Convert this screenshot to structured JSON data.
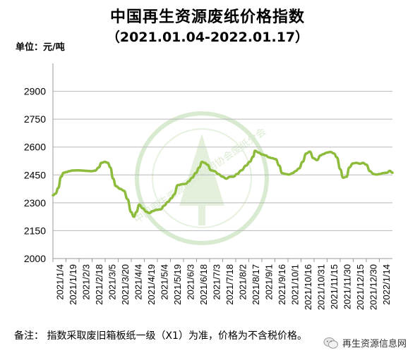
{
  "header": {
    "title": "中国再生资源废纸价格指数",
    "subtitle": "（2021.01.04-2022.01.17）",
    "unit_label": "单位：元/吨"
  },
  "footer": {
    "note": "备注：  指数采取废旧箱板纸一级（X1）为准，价格为不含税价格。",
    "brand_text": "再生资源信息网",
    "brand_icon": "wechat-icon",
    "watermark_text": "中国再生资源回收利用协会废纸分会"
  },
  "colors": {
    "line": "#8dbb3b",
    "axis": "#9a9a9a",
    "watermark": "#d8ead0"
  },
  "chart_data": {
    "type": "line",
    "title": "中国再生资源废纸价格指数",
    "subtitle": "（2021.01.04-2022.01.17）",
    "ylabel": "单位：元/吨",
    "ylim": [
      2000,
      3050
    ],
    "yticks": [
      2000,
      2150,
      2300,
      2450,
      2600,
      2750,
      2900
    ],
    "xticks": [
      "2021/1/4",
      "2021/1/19",
      "2021/2/3",
      "2021/2/18",
      "2021/3/5",
      "2021/3/20",
      "2021/4/4",
      "2021/4/19",
      "2021/5/4",
      "2021/5/19",
      "2021/6/3",
      "2021/6/18",
      "2021/7/3",
      "2021/7/18",
      "2021/8/2",
      "2021/8/17",
      "2021/9/1",
      "2021/9/16",
      "2021/10/1",
      "2021/10/16",
      "2021/10/31",
      "2021/11/15",
      "2021/11/30",
      "2021/12/15",
      "2021/12/30",
      "2022/1/14"
    ],
    "grid": true,
    "series": [
      {
        "x": [
          "2021-01-04",
          "2021-01-07",
          "2021-01-10",
          "2021-01-13",
          "2021-01-16",
          "2021-01-19",
          "2021-01-22",
          "2021-01-26",
          "2021-02-01",
          "2021-02-05",
          "2021-02-10",
          "2021-02-16",
          "2021-02-20",
          "2021-02-24",
          "2021-02-27",
          "2021-03-03",
          "2021-03-06",
          "2021-03-09",
          "2021-03-12",
          "2021-03-15",
          "2021-03-20",
          "2021-03-24",
          "2021-03-28",
          "2021-04-01",
          "2021-04-04",
          "2021-04-07",
          "2021-04-10",
          "2021-04-14",
          "2021-04-18",
          "2021-04-21",
          "2021-04-25",
          "2021-04-29",
          "2021-05-04",
          "2021-05-08",
          "2021-05-12",
          "2021-05-16",
          "2021-05-19",
          "2021-05-23",
          "2021-05-28",
          "2021-06-01",
          "2021-06-04",
          "2021-06-08",
          "2021-06-12",
          "2021-06-16",
          "2021-06-19",
          "2021-06-22",
          "2021-06-25",
          "2021-06-29",
          "2021-07-03",
          "2021-07-07",
          "2021-07-12",
          "2021-07-16",
          "2021-07-20",
          "2021-07-24",
          "2021-07-28",
          "2021-08-02",
          "2021-08-07",
          "2021-08-11",
          "2021-08-15",
          "2021-08-17",
          "2021-08-21",
          "2021-08-25",
          "2021-08-29",
          "2021-09-01",
          "2021-09-05",
          "2021-09-09",
          "2021-09-13",
          "2021-09-16",
          "2021-09-20",
          "2021-09-24",
          "2021-09-28",
          "2021-10-01",
          "2021-10-05",
          "2021-10-09",
          "2021-10-13",
          "2021-10-17",
          "2021-10-21",
          "2021-10-25",
          "2021-10-29",
          "2021-11-01",
          "2021-11-05",
          "2021-11-09",
          "2021-11-13",
          "2021-11-16",
          "2021-11-20",
          "2021-11-23",
          "2021-11-27",
          "2021-11-30",
          "2021-12-04",
          "2021-12-08",
          "2021-12-12",
          "2021-12-15",
          "2021-12-19",
          "2021-12-23",
          "2021-12-27",
          "2021-12-30",
          "2022-01-03",
          "2022-01-07",
          "2022-01-11",
          "2022-01-14",
          "2022-01-17"
        ],
        "y": [
          2340,
          2350,
          2380,
          2440,
          2462,
          2465,
          2470,
          2474,
          2475,
          2474,
          2472,
          2470,
          2473,
          2490,
          2515,
          2520,
          2515,
          2490,
          2430,
          2390,
          2375,
          2365,
          2320,
          2250,
          2225,
          2250,
          2290,
          2270,
          2252,
          2245,
          2255,
          2262,
          2265,
          2285,
          2305,
          2325,
          2345,
          2395,
          2400,
          2402,
          2415,
          2435,
          2460,
          2490,
          2520,
          2515,
          2505,
          2475,
          2470,
          2455,
          2440,
          2430,
          2440,
          2440,
          2455,
          2475,
          2500,
          2520,
          2548,
          2580,
          2570,
          2560,
          2555,
          2545,
          2540,
          2535,
          2500,
          2460,
          2455,
          2452,
          2460,
          2470,
          2485,
          2520,
          2565,
          2575,
          2540,
          2530,
          2555,
          2562,
          2570,
          2574,
          2565,
          2545,
          2480,
          2435,
          2440,
          2490,
          2512,
          2515,
          2510,
          2515,
          2505,
          2470,
          2455,
          2452,
          2455,
          2460,
          2462,
          2472,
          2462
        ]
      }
    ]
  }
}
